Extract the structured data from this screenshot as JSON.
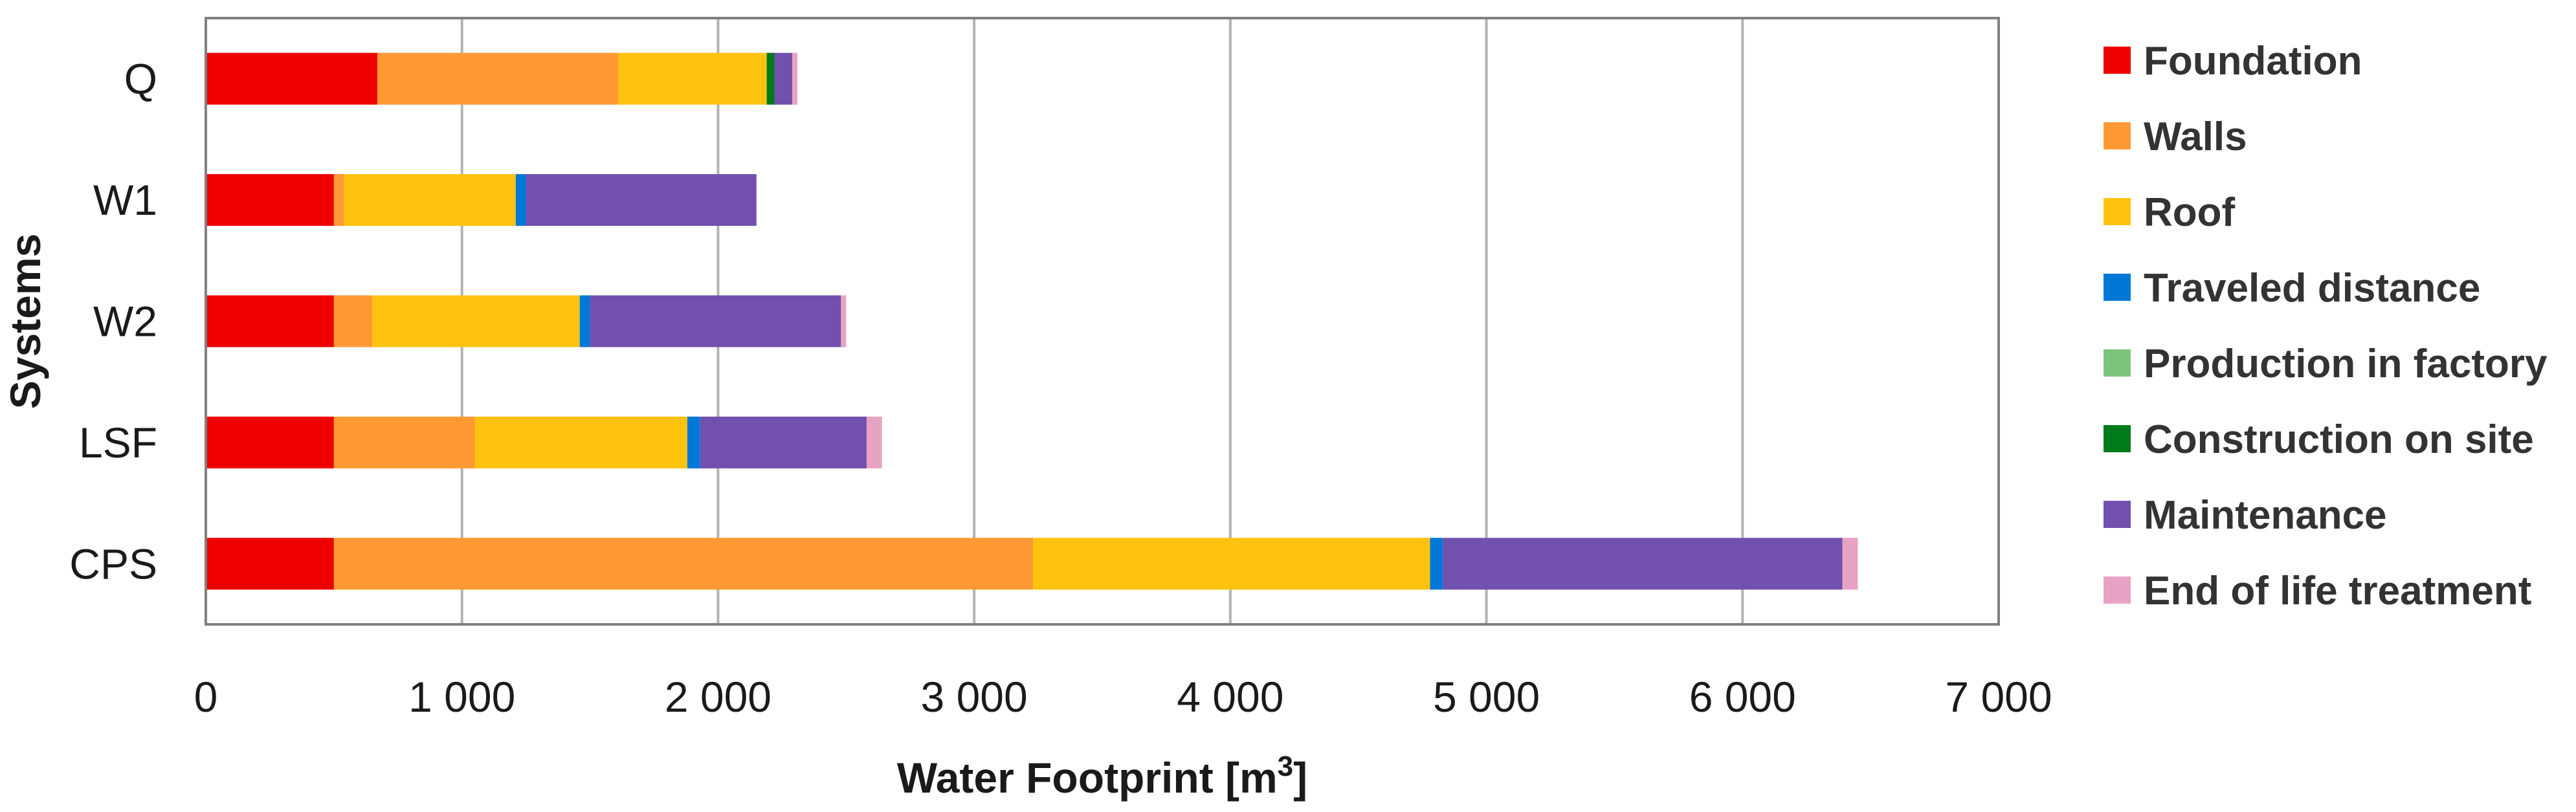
{
  "chart_data": {
    "type": "bar",
    "orientation": "horizontal",
    "stacked": true,
    "title": "",
    "xlabel": "Water Footprint [m",
    "xlabel_sup": "3",
    "xlabel_end": "]",
    "ylabel": "Systems",
    "xlim": [
      0,
      7000
    ],
    "x_ticks": [
      0,
      1000,
      2000,
      3000,
      4000,
      5000,
      6000,
      7000
    ],
    "x_tick_labels": [
      "0",
      "1 000",
      "2 000",
      "3 000",
      "4 000",
      "5 000",
      "6 000",
      "7 000"
    ],
    "grid": "vertical",
    "legend_position": "right",
    "categories": [
      "Q",
      "W1",
      "W2",
      "LSF",
      "CPS"
    ],
    "series": [
      {
        "name": "Foundation",
        "color": "#ee0000",
        "values": [
          670,
          500,
          500,
          500,
          500
        ]
      },
      {
        "name": "Walls",
        "color": "#ff9933",
        "values": [
          940,
          40,
          150,
          550,
          2730
        ]
      },
      {
        "name": "Roof",
        "color": "#ffc20e",
        "values": [
          580,
          670,
          810,
          830,
          1550
        ]
      },
      {
        "name": "Traveled distance",
        "color": "#0078d7",
        "values": [
          0,
          40,
          40,
          50,
          50
        ]
      },
      {
        "name": "Production in factory",
        "color": "#7cc47c",
        "values": [
          0,
          0,
          0,
          0,
          0
        ]
      },
      {
        "name": "Construction on site",
        "color": "#007a1a",
        "values": [
          30,
          0,
          0,
          0,
          0
        ]
      },
      {
        "name": "Maintenance",
        "color": "#7150ae",
        "values": [
          70,
          900,
          980,
          650,
          1560
        ]
      },
      {
        "name": "End of life treatment",
        "color": "#e8a3c4",
        "values": [
          20,
          0,
          20,
          60,
          60
        ]
      }
    ]
  }
}
